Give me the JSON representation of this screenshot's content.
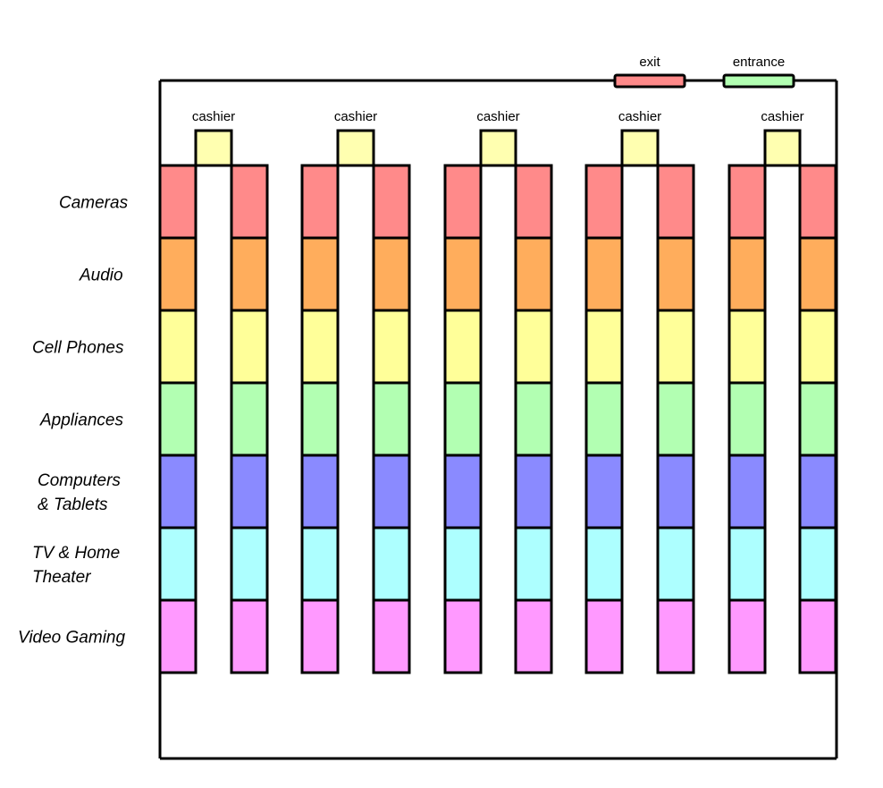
{
  "doors": {
    "exit": {
      "label": "exit",
      "color": "#ff8a8a"
    },
    "entrance": {
      "label": "entrance",
      "color": "#b2ffb2"
    }
  },
  "cashier": {
    "label": "cashier",
    "color": "#ffffb0",
    "count": 5
  },
  "categories": [
    {
      "lines": [
        "Cameras"
      ],
      "color": "#ff8a8a"
    },
    {
      "lines": [
        "Audio"
      ],
      "color": "#ffad5c"
    },
    {
      "lines": [
        "Cell Phones"
      ],
      "color": "#ffff99"
    },
    {
      "lines": [
        "Appliances"
      ],
      "color": "#b2ffb2"
    },
    {
      "lines": [
        "Computers",
        "& Tablets"
      ],
      "color": "#8a8aff"
    },
    {
      "lines": [
        "TV & Home",
        "Theater"
      ],
      "color": "#adffff"
    },
    {
      "lines": [
        "Video Gaming"
      ],
      "color": "#ff99ff"
    }
  ]
}
